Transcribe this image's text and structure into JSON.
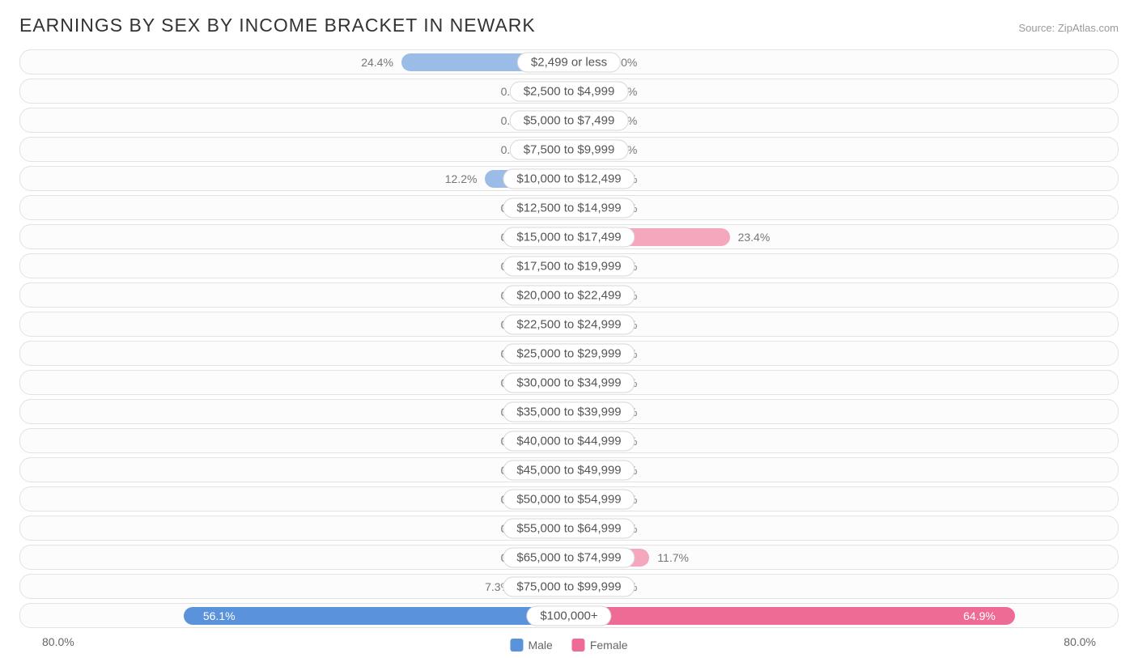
{
  "title": "EARNINGS BY SEX BY INCOME BRACKET IN NEWARK",
  "source": "Source: ZipAtlas.com",
  "axis_max": 80.0,
  "axis_label_left": "80.0%",
  "axis_label_right": "80.0%",
  "min_bar_pct": 5.0,
  "colors": {
    "male_light": "#9cbce8",
    "male_dark": "#5a93db",
    "female_light": "#f5a7bd",
    "female_dark": "#ed6b95",
    "row_bg": "#fcfcfc",
    "row_border": "#e2e2e2",
    "label_bg": "#ffffff",
    "label_border": "#d8d8d8",
    "text": "#555555",
    "text_muted": "#777777",
    "title_color": "#333333"
  },
  "legend": {
    "male": "Male",
    "female": "Female"
  },
  "rows": [
    {
      "label": "$2,499 or less",
      "male": 24.4,
      "female": 0.0
    },
    {
      "label": "$2,500 to $4,999",
      "male": 0.0,
      "female": 0.0
    },
    {
      "label": "$5,000 to $7,499",
      "male": 0.0,
      "female": 0.0
    },
    {
      "label": "$7,500 to $9,999",
      "male": 0.0,
      "female": 0.0
    },
    {
      "label": "$10,000 to $12,499",
      "male": 12.2,
      "female": 0.0
    },
    {
      "label": "$12,500 to $14,999",
      "male": 0.0,
      "female": 0.0
    },
    {
      "label": "$15,000 to $17,499",
      "male": 0.0,
      "female": 23.4
    },
    {
      "label": "$17,500 to $19,999",
      "male": 0.0,
      "female": 0.0
    },
    {
      "label": "$20,000 to $22,499",
      "male": 0.0,
      "female": 0.0
    },
    {
      "label": "$22,500 to $24,999",
      "male": 0.0,
      "female": 0.0
    },
    {
      "label": "$25,000 to $29,999",
      "male": 0.0,
      "female": 0.0
    },
    {
      "label": "$30,000 to $34,999",
      "male": 0.0,
      "female": 0.0
    },
    {
      "label": "$35,000 to $39,999",
      "male": 0.0,
      "female": 0.0
    },
    {
      "label": "$40,000 to $44,999",
      "male": 0.0,
      "female": 0.0
    },
    {
      "label": "$45,000 to $49,999",
      "male": 0.0,
      "female": 0.0
    },
    {
      "label": "$50,000 to $54,999",
      "male": 0.0,
      "female": 0.0
    },
    {
      "label": "$55,000 to $64,999",
      "male": 0.0,
      "female": 0.0
    },
    {
      "label": "$65,000 to $74,999",
      "male": 0.0,
      "female": 11.7
    },
    {
      "label": "$75,000 to $99,999",
      "male": 7.3,
      "female": 0.0
    },
    {
      "label": "$100,000+",
      "male": 56.1,
      "female": 64.9
    }
  ]
}
